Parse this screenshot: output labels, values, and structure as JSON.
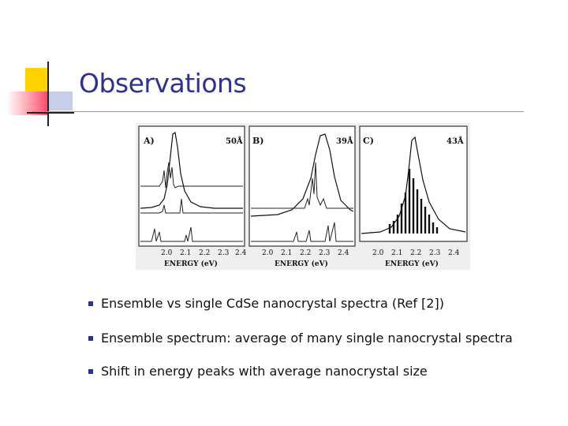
{
  "slide": {
    "title": "Observations",
    "bullets": [
      "Ensemble vs single CdSe nanocrystal spectra (Ref [2])",
      "Ensemble spectrum: average of many single nanocrystal spectra",
      "Shift in energy peaks with average nanocrystal size"
    ]
  },
  "figure": {
    "panels": [
      {
        "label": "A)",
        "size": "50Å"
      },
      {
        "label": "B)",
        "size": "39Å"
      },
      {
        "label": "C)",
        "size": "43Å"
      }
    ],
    "tick_labels": [
      "2.0",
      "2.1",
      "2.2",
      "2.3",
      "2.4"
    ],
    "xlabel": "ENERGY (eV)"
  },
  "colors": {
    "title": "#2e3192",
    "accent_yellow": "#ffd200",
    "accent_red": "#ff4a6a",
    "accent_blue": "#2e3192"
  }
}
